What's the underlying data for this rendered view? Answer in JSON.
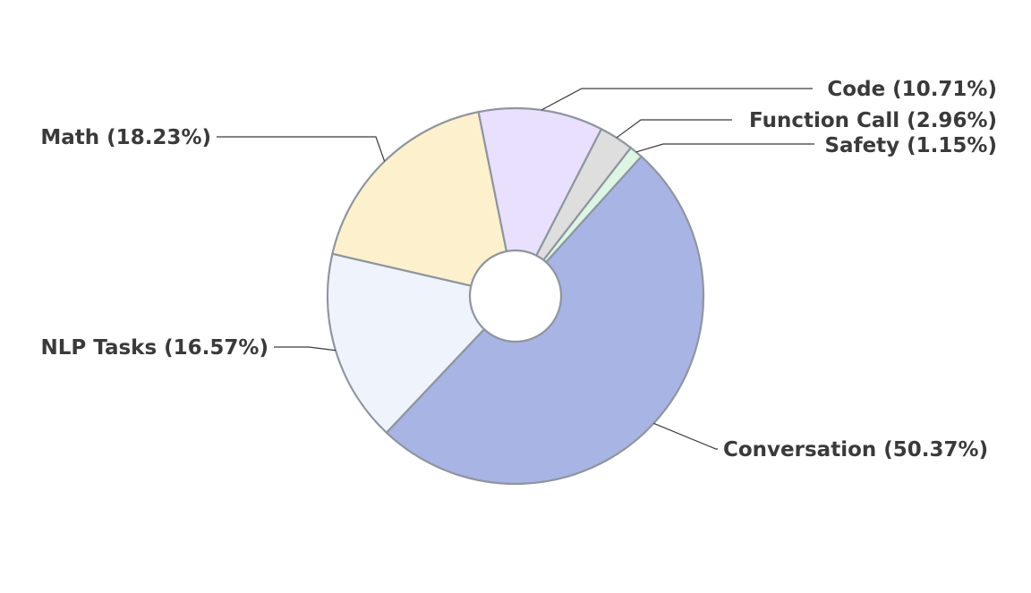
{
  "chart_data": {
    "type": "pie",
    "title": "",
    "slices": [
      {
        "label": "Conversation (50.37%)",
        "name": "Conversation",
        "value": 50.37,
        "color": "#a8b4e3"
      },
      {
        "label": "NLP Tasks (16.57%)",
        "name": "NLP Tasks",
        "value": 16.57,
        "color": "#eef3fc"
      },
      {
        "label": "Math (18.23%)",
        "name": "Math",
        "value": 18.23,
        "color": "#fdf0cd"
      },
      {
        "label": "Code (10.71%)",
        "name": "Code",
        "value": 10.71,
        "color": "#e8e0fd"
      },
      {
        "label": "Function Call (2.96%)",
        "name": "Function Call",
        "value": 2.96,
        "color": "#dedede"
      },
      {
        "label": "Safety (1.15%)",
        "name": "Safety",
        "value": 1.15,
        "color": "#dcf6e3"
      }
    ],
    "legend": "none",
    "hole": true
  }
}
